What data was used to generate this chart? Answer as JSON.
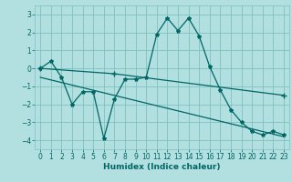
{
  "xlabel": "Humidex (Indice chaleur)",
  "background_color": "#b2dfdf",
  "grid_color": "#80c0c0",
  "line_color": "#006666",
  "xlim": [
    -0.5,
    23.5
  ],
  "ylim": [
    -4.5,
    3.5
  ],
  "yticks": [
    -4,
    -3,
    -2,
    -1,
    0,
    1,
    2,
    3
  ],
  "xticks": [
    0,
    1,
    2,
    3,
    4,
    5,
    6,
    7,
    8,
    9,
    10,
    11,
    12,
    13,
    14,
    15,
    16,
    17,
    18,
    19,
    20,
    21,
    22,
    23
  ],
  "line1_x": [
    0,
    1,
    2,
    3,
    4,
    5,
    6,
    7,
    8,
    9,
    10,
    11,
    12,
    13,
    14,
    15,
    16,
    17,
    18,
    19,
    20,
    21,
    22,
    23
  ],
  "line1_y": [
    0.0,
    0.4,
    -0.5,
    -2.0,
    -1.3,
    -1.3,
    -3.9,
    -1.7,
    -0.6,
    -0.6,
    -0.5,
    1.9,
    2.8,
    2.1,
    2.8,
    1.8,
    0.1,
    -1.2,
    -2.3,
    -3.0,
    -3.5,
    -3.7,
    -3.5,
    -3.7
  ],
  "line2_x": [
    0,
    7,
    23
  ],
  "line2_y": [
    0.0,
    -0.3,
    -1.5
  ],
  "line3_x": [
    0,
    23
  ],
  "line3_y": [
    -0.5,
    -3.8
  ]
}
